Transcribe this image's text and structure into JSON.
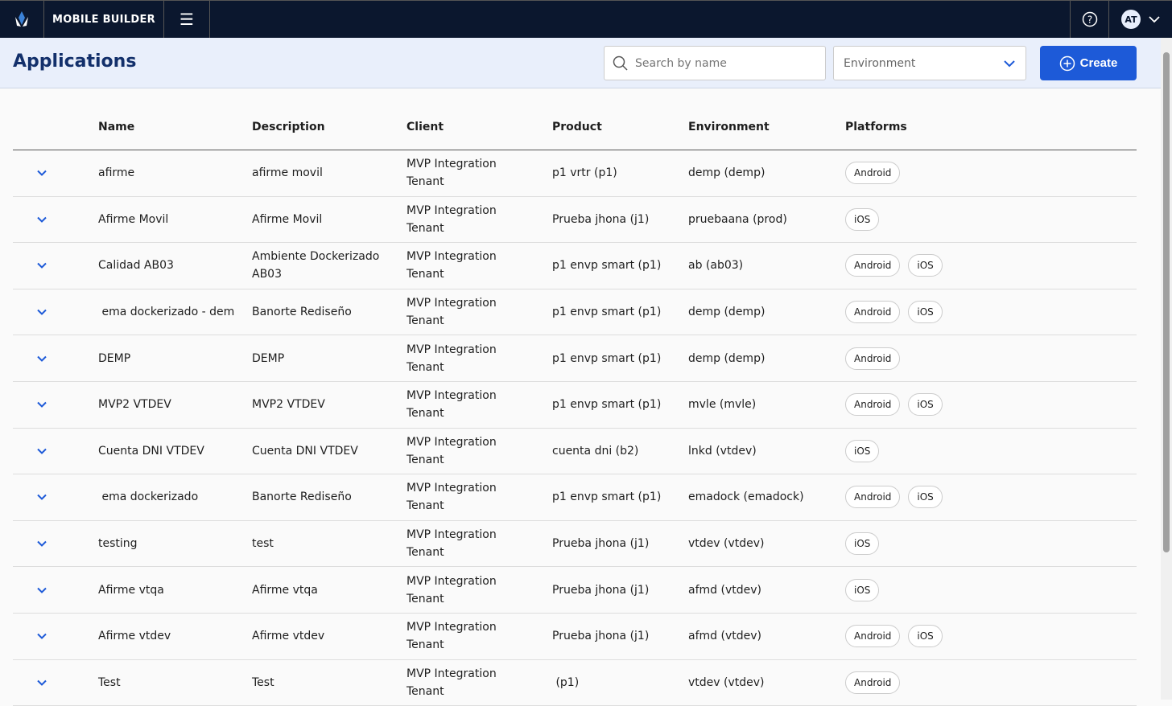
{
  "topbar": {
    "brand": "MOBILE BUILDER",
    "user_initials": "AT"
  },
  "header": {
    "title": "Applications",
    "search_placeholder": "Search by name",
    "environment_placeholder": "Environment",
    "create_label": "Create"
  },
  "columns": [
    "Name",
    "Description",
    "Client",
    "Product",
    "Environment",
    "Platforms"
  ],
  "rows": [
    {
      "name": "afirme",
      "description": "afirme movil",
      "client": "MVP Integration Tenant",
      "product": "p1 vrtr (p1)",
      "environment": "demp (demp)",
      "platforms": [
        "Android"
      ]
    },
    {
      "name": "Afirme Movil",
      "description": "Afirme Movil",
      "client": "MVP Integration Tenant",
      "product": "Prueba jhona (j1)",
      "environment": "pruebaana (prod)",
      "platforms": [
        "iOS"
      ]
    },
    {
      "name": "Calidad AB03",
      "description": "Ambiente Dockerizado AB03",
      "client": "MVP Integration Tenant",
      "product": "p1 envp smart (p1)",
      "environment": "ab (ab03)",
      "platforms": [
        "Android",
        "iOS"
      ]
    },
    {
      "name": " ema dockerizado - dem",
      "description": "Banorte Rediseño",
      "client": "MVP Integration Tenant",
      "product": "p1 envp smart (p1)",
      "environment": "demp (demp)",
      "platforms": [
        "Android",
        "iOS"
      ]
    },
    {
      "name": "DEMP",
      "description": "DEMP",
      "client": "MVP Integration Tenant",
      "product": "p1 envp smart (p1)",
      "environment": "demp (demp)",
      "platforms": [
        "Android"
      ]
    },
    {
      "name": "MVP2 VTDEV",
      "description": "MVP2 VTDEV",
      "client": "MVP Integration Tenant",
      "product": "p1 envp smart (p1)",
      "environment": "mvle (mvle)",
      "platforms": [
        "Android",
        "iOS"
      ]
    },
    {
      "name": "Cuenta DNI VTDEV",
      "description": "Cuenta DNI VTDEV",
      "client": "MVP Integration Tenant",
      "product": "cuenta dni (b2)",
      "environment": "lnkd (vtdev)",
      "platforms": [
        "iOS"
      ]
    },
    {
      "name": " ema dockerizado",
      "description": "Banorte Rediseño",
      "client": "MVP Integration Tenant",
      "product": "p1 envp smart (p1)",
      "environment": "emadock (emadock)",
      "platforms": [
        "Android",
        "iOS"
      ]
    },
    {
      "name": "testing",
      "description": "test",
      "client": "MVP Integration Tenant",
      "product": "Prueba jhona (j1)",
      "environment": "vtdev (vtdev)",
      "platforms": [
        "iOS"
      ]
    },
    {
      "name": "Afirme vtqa",
      "description": "Afirme vtqa",
      "client": "MVP Integration Tenant",
      "product": "Prueba jhona (j1)",
      "environment": "afmd (vtdev)",
      "platforms": [
        "iOS"
      ]
    },
    {
      "name": "Afirme vtdev",
      "description": "Afirme vtdev",
      "client": "MVP Integration Tenant",
      "product": "Prueba jhona (j1)",
      "environment": "afmd (vtdev)",
      "platforms": [
        "Android",
        "iOS"
      ]
    },
    {
      "name": "Test",
      "description": "Test",
      "client": "MVP Integration Tenant",
      "product": " (p1)",
      "environment": "vtdev (vtdev)",
      "platforms": [
        "Android"
      ]
    }
  ]
}
